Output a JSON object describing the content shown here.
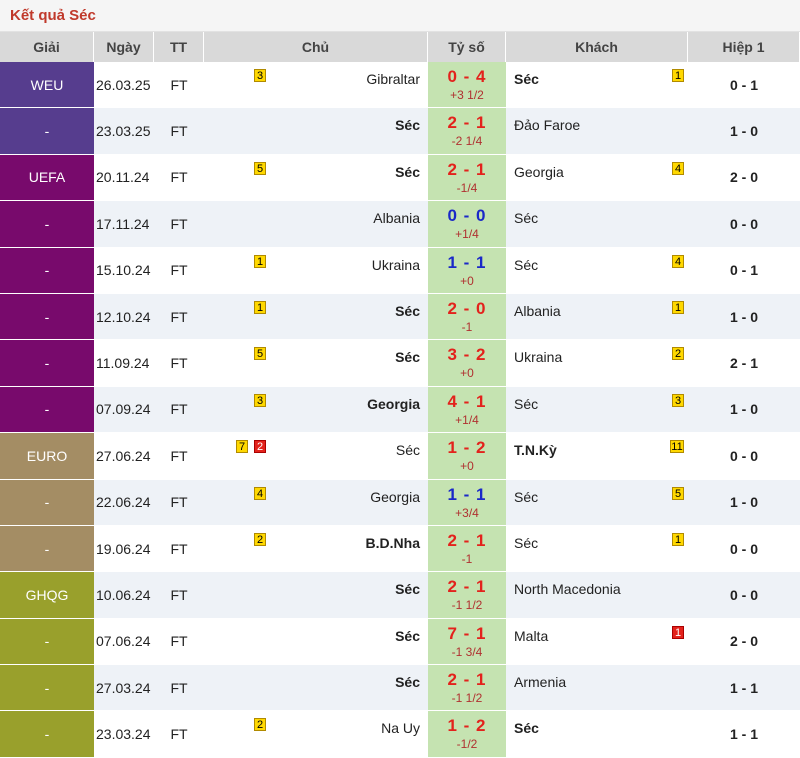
{
  "title": "Kết quả Séc",
  "headers": {
    "league": "Giải",
    "date": "Ngày",
    "status": "TT",
    "home": "Chủ",
    "score": "Tỷ số",
    "away": "Khách",
    "half": "Hiệp 1"
  },
  "colors": {
    "win_score": "#e3221c",
    "draw_score": "#1a28c8",
    "score_bg": "#c5e3b1",
    "row_alt": "#eef2f7"
  },
  "rows": [
    {
      "league": "WEU",
      "league_color": "#563d8e",
      "date": "26.03.25",
      "status": "FT",
      "home": "Gibraltar",
      "home_bold": false,
      "home_badges": [
        {
          "text": "3",
          "color": "yellow"
        }
      ],
      "score": "0 - 4",
      "score_color": "#e3221c",
      "handicap": "+3 1/2",
      "away": "Séc",
      "away_bold": true,
      "away_badges": [
        {
          "text": "1",
          "color": "yellow"
        }
      ],
      "half": "0 - 1"
    },
    {
      "league": "-",
      "league_color": "#563d8e",
      "date": "23.03.25",
      "status": "FT",
      "home": "Séc",
      "home_bold": true,
      "home_badges": [],
      "score": "2 - 1",
      "score_color": "#e3221c",
      "handicap": "-2 1/4",
      "away": "Đảo Faroe",
      "away_bold": false,
      "away_badges": [],
      "half": "1 - 0"
    },
    {
      "league": "UEFA",
      "league_color": "#780a6c",
      "date": "20.11.24",
      "status": "FT",
      "home": "Séc",
      "home_bold": true,
      "home_badges": [
        {
          "text": "5",
          "color": "yellow"
        }
      ],
      "score": "2 - 1",
      "score_color": "#e3221c",
      "handicap": "-1/4",
      "away": "Georgia",
      "away_bold": false,
      "away_badges": [
        {
          "text": "4",
          "color": "yellow"
        }
      ],
      "half": "2 - 0"
    },
    {
      "league": "-",
      "league_color": "#780a6c",
      "date": "17.11.24",
      "status": "FT",
      "home": "Albania",
      "home_bold": false,
      "home_badges": [],
      "score": "0 - 0",
      "score_color": "#1a28c8",
      "handicap": "+1/4",
      "away": "Séc",
      "away_bold": false,
      "away_badges": [],
      "half": "0 - 0"
    },
    {
      "league": "-",
      "league_color": "#780a6c",
      "date": "15.10.24",
      "status": "FT",
      "home": "Ukraina",
      "home_bold": false,
      "home_badges": [
        {
          "text": "1",
          "color": "yellow"
        }
      ],
      "score": "1 - 1",
      "score_color": "#1a28c8",
      "handicap": "+0",
      "away": "Séc",
      "away_bold": false,
      "away_badges": [
        {
          "text": "4",
          "color": "yellow"
        }
      ],
      "half": "0 - 1"
    },
    {
      "league": "-",
      "league_color": "#780a6c",
      "date": "12.10.24",
      "status": "FT",
      "home": "Séc",
      "home_bold": true,
      "home_badges": [
        {
          "text": "1",
          "color": "yellow"
        }
      ],
      "score": "2 - 0",
      "score_color": "#e3221c",
      "handicap": "-1",
      "away": "Albania",
      "away_bold": false,
      "away_badges": [
        {
          "text": "1",
          "color": "yellow"
        }
      ],
      "half": "1 - 0"
    },
    {
      "league": "-",
      "league_color": "#780a6c",
      "date": "11.09.24",
      "status": "FT",
      "home": "Séc",
      "home_bold": true,
      "home_badges": [
        {
          "text": "5",
          "color": "yellow"
        }
      ],
      "score": "3 - 2",
      "score_color": "#e3221c",
      "handicap": "+0",
      "away": "Ukraina",
      "away_bold": false,
      "away_badges": [
        {
          "text": "2",
          "color": "yellow"
        }
      ],
      "half": "2 - 1"
    },
    {
      "league": "-",
      "league_color": "#780a6c",
      "date": "07.09.24",
      "status": "FT",
      "home": "Georgia",
      "home_bold": true,
      "home_badges": [
        {
          "text": "3",
          "color": "yellow"
        }
      ],
      "score": "4 - 1",
      "score_color": "#e3221c",
      "handicap": "+1/4",
      "away": "Séc",
      "away_bold": false,
      "away_badges": [
        {
          "text": "3",
          "color": "yellow"
        }
      ],
      "half": "1 - 0"
    },
    {
      "league": "EURO",
      "league_color": "#a48d64",
      "date": "27.06.24",
      "status": "FT",
      "home": "Séc",
      "home_bold": false,
      "home_badges": [
        {
          "text": "7",
          "color": "yellow"
        },
        {
          "text": "2",
          "color": "red"
        }
      ],
      "score": "1 - 2",
      "score_color": "#e3221c",
      "handicap": "+0",
      "away": "T.N.Kỳ",
      "away_bold": true,
      "away_badges": [
        {
          "text": "11",
          "color": "yellow"
        }
      ],
      "half": "0 - 0"
    },
    {
      "league": "-",
      "league_color": "#a48d64",
      "date": "22.06.24",
      "status": "FT",
      "home": "Georgia",
      "home_bold": false,
      "home_badges": [
        {
          "text": "4",
          "color": "yellow"
        }
      ],
      "score": "1 - 1",
      "score_color": "#1a28c8",
      "handicap": "+3/4",
      "away": "Séc",
      "away_bold": false,
      "away_badges": [
        {
          "text": "5",
          "color": "yellow"
        }
      ],
      "half": "1 - 0"
    },
    {
      "league": "-",
      "league_color": "#a48d64",
      "date": "19.06.24",
      "status": "FT",
      "home": "B.D.Nha",
      "home_bold": true,
      "home_badges": [
        {
          "text": "2",
          "color": "yellow"
        }
      ],
      "score": "2 - 1",
      "score_color": "#e3221c",
      "handicap": "-1",
      "away": "Séc",
      "away_bold": false,
      "away_badges": [
        {
          "text": "1",
          "color": "yellow"
        }
      ],
      "half": "0 - 0"
    },
    {
      "league": "GHQG",
      "league_color": "#99a02c",
      "date": "10.06.24",
      "status": "FT",
      "home": "Séc",
      "home_bold": true,
      "home_badges": [],
      "score": "2 - 1",
      "score_color": "#e3221c",
      "handicap": "-1 1/2",
      "away": "North Macedonia",
      "away_bold": false,
      "away_badges": [],
      "half": "0 - 0"
    },
    {
      "league": "-",
      "league_color": "#99a02c",
      "date": "07.06.24",
      "status": "FT",
      "home": "Séc",
      "home_bold": true,
      "home_badges": [],
      "score": "7 - 1",
      "score_color": "#e3221c",
      "handicap": "-1 3/4",
      "away": "Malta",
      "away_bold": false,
      "away_badges": [
        {
          "text": "1",
          "color": "red"
        }
      ],
      "half": "2 - 0"
    },
    {
      "league": "-",
      "league_color": "#99a02c",
      "date": "27.03.24",
      "status": "FT",
      "home": "Séc",
      "home_bold": true,
      "home_badges": [],
      "score": "2 - 1",
      "score_color": "#e3221c",
      "handicap": "-1 1/2",
      "away": "Armenia",
      "away_bold": false,
      "away_badges": [],
      "half": "1 - 1"
    },
    {
      "league": "-",
      "league_color": "#99a02c",
      "date": "23.03.24",
      "status": "FT",
      "home": "Na Uy",
      "home_bold": false,
      "home_badges": [
        {
          "text": "2",
          "color": "yellow"
        }
      ],
      "score": "1 - 2",
      "score_color": "#e3221c",
      "handicap": "-1/2",
      "away": "Séc",
      "away_bold": true,
      "away_badges": [],
      "half": "1 - 1"
    }
  ]
}
